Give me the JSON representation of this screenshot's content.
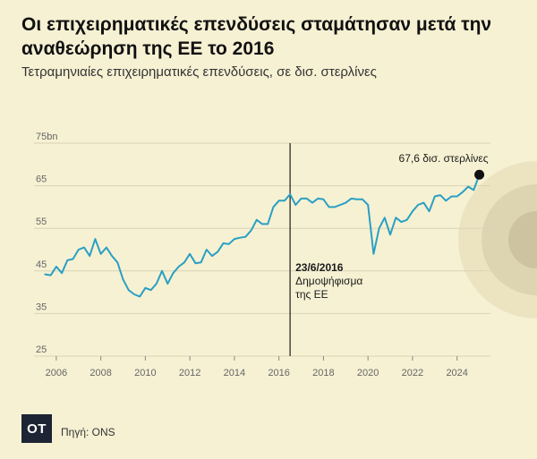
{
  "header": {
    "title": "Οι επιχειρηματικές επενδύσεις σταμάτησαν μετά την αναθεώρηση της ΕΕ το 2016",
    "subtitle": "Τετραμηνιαίες επιχειρηματικές επενδύσεις, σε δισ. στερλίνες"
  },
  "footer": {
    "logo_text": "OT",
    "source": "Πηγή: ONS"
  },
  "colors": {
    "background": "#f6f1d3",
    "line": "#2a9fc4",
    "grid": "#d9d3b5",
    "axis_text": "#666666"
  },
  "chart_data": {
    "type": "line",
    "title": "Οι επιχειρηματικές επενδύσεις σταμάτησαν μετά την αναθεώρηση της ΕΕ το 2016",
    "subtitle": "Τετραμηνιαίες επιχειρηματικές επενδύσεις, σε δισ. στερλίνες",
    "xlabel": "",
    "ylabel": "",
    "xlim": [
      2005.0,
      2025.5
    ],
    "ylim": [
      25,
      75
    ],
    "x_ticks": [
      2006,
      2008,
      2010,
      2012,
      2014,
      2016,
      2018,
      2020,
      2022,
      2024
    ],
    "x_tick_labels": [
      "2006",
      "2008",
      "2010",
      "2012",
      "2014",
      "2016",
      "2018",
      "2020",
      "2022",
      "2024"
    ],
    "y_ticks": [
      25,
      35,
      45,
      55,
      65,
      75
    ],
    "y_tick_labels": [
      "25",
      "35",
      "45",
      "55",
      "65",
      "75bn"
    ],
    "grid": true,
    "series": [
      {
        "x": [
          2005.5,
          2005.75,
          2006.0,
          2006.25,
          2006.5,
          2006.75,
          2007.0,
          2007.25,
          2007.5,
          2007.75,
          2008.0,
          2008.25,
          2008.5,
          2008.75,
          2009.0,
          2009.25,
          2009.5,
          2009.75,
          2010.0,
          2010.25,
          2010.5,
          2010.75,
          2011.0,
          2011.25,
          2011.5,
          2011.75,
          2012.0,
          2012.25,
          2012.5,
          2012.75,
          2013.0,
          2013.25,
          2013.5,
          2013.75,
          2014.0,
          2014.25,
          2014.5,
          2014.75,
          2015.0,
          2015.25,
          2015.5,
          2015.75,
          2016.0,
          2016.25,
          2016.5,
          2016.75,
          2017.0,
          2017.25,
          2017.5,
          2017.75,
          2018.0,
          2018.25,
          2018.5,
          2018.75,
          2019.0,
          2019.25,
          2019.5,
          2019.75,
          2020.0,
          2020.25,
          2020.5,
          2020.75,
          2021.0,
          2021.25,
          2021.5,
          2021.75,
          2022.0,
          2022.25,
          2022.5,
          2022.75,
          2023.0,
          2023.25,
          2023.5,
          2023.75,
          2024.0,
          2024.25,
          2024.5,
          2024.75,
          2025.0
        ],
        "values": [
          44.2,
          44.0,
          46.0,
          44.5,
          47.5,
          47.8,
          50.0,
          50.5,
          48.5,
          52.5,
          49.0,
          50.5,
          48.5,
          47.0,
          43.0,
          40.5,
          39.5,
          39.0,
          41.0,
          40.5,
          42.0,
          45.0,
          42.0,
          44.5,
          46.0,
          47.0,
          49.0,
          46.8,
          47.0,
          50.0,
          48.5,
          49.5,
          51.5,
          51.3,
          52.5,
          52.8,
          53.0,
          54.5,
          57.0,
          56.0,
          56.0,
          60.0,
          61.5,
          61.5,
          63.0,
          60.5,
          62.0,
          62.0,
          61.0,
          62.0,
          61.8,
          60.0,
          60.0,
          60.5,
          61.0,
          62.0,
          61.8,
          61.8,
          60.5,
          49.0,
          55.0,
          57.5,
          53.5,
          57.5,
          56.5,
          57.0,
          59.0,
          60.5,
          61.0,
          59.0,
          62.5,
          62.8,
          61.5,
          62.5,
          62.5,
          63.5,
          64.8,
          64.0,
          67.6
        ]
      }
    ],
    "annotations": [
      {
        "x": 2016.5,
        "y": 45,
        "lines": [
          "23/6/2016",
          "Δημοψήφισμα",
          "της ΕΕ"
        ],
        "type": "vline"
      },
      {
        "x": 2025.0,
        "y": 67.6,
        "text": "67,6 δισ. στερλίνες",
        "type": "point"
      }
    ]
  }
}
